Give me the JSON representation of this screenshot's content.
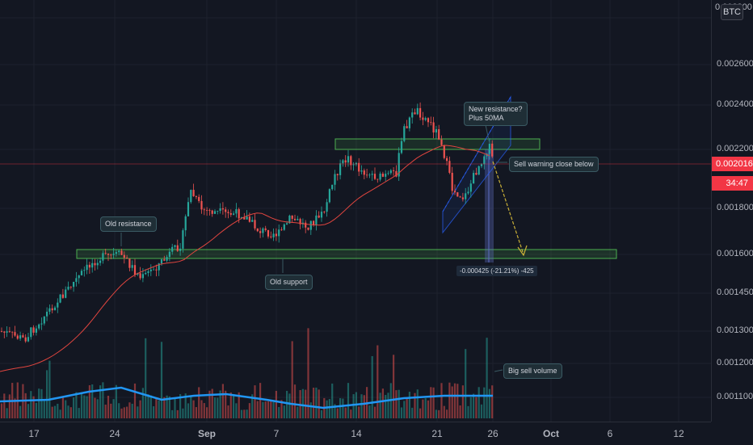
{
  "symbol": {
    "currency_badge": "BTC"
  },
  "price_axis": {
    "ticks": [
      {
        "label": "0.002800",
        "value": 0.0028
      },
      {
        "label": "0.002600",
        "value": 0.0026
      },
      {
        "label": "0.002400",
        "value": 0.0024
      },
      {
        "label": "0.002200",
        "value": 0.0022
      },
      {
        "label": "0.001800",
        "value": 0.0018
      },
      {
        "label": "0.001600",
        "value": 0.0016
      },
      {
        "label": "0.001450",
        "value": 0.00145
      },
      {
        "label": "0.001300",
        "value": 0.0013
      },
      {
        "label": "0.001200",
        "value": 0.0012
      },
      {
        "label": "0.001100",
        "value": 0.0011
      }
    ],
    "current_price": "0.002016",
    "countdown": "34:47"
  },
  "time_axis": {
    "ticks": [
      "17",
      "24",
      "Sep",
      "7",
      "14",
      "21",
      "26",
      "Oct",
      "6",
      "12"
    ]
  },
  "annotations": {
    "old_resistance": "Old resistance",
    "old_support": "Old support",
    "new_resistance_line1": "New resistance?",
    "new_resistance_line2": "Plus 50MA",
    "sell_warning": "Sell warning close below",
    "big_sell_volume": "Big sell volume",
    "measure": "-0.000425 (-21.21%) -425"
  },
  "colors": {
    "background": "#131722",
    "up": "#26a69a",
    "down": "#ef5350",
    "ma": "#e0453f",
    "volume_ma": "#2196f3",
    "zone": "#4caf50",
    "current_price": "#f23645"
  }
}
